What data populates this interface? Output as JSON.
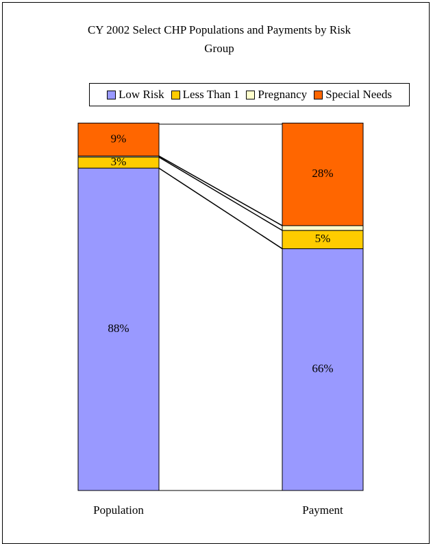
{
  "chart_data": {
    "type": "stacked_bar",
    "title": "CY 2002 Select CHP Populations and Payments by Risk Group",
    "categories": [
      "Population",
      "Payment"
    ],
    "series": [
      {
        "name": "Low Risk",
        "color": "#9999ff",
        "values": [
          88,
          66
        ],
        "value_labels": [
          "88%",
          "66%"
        ]
      },
      {
        "name": "Less Than 1",
        "color": "#ffcc00",
        "values": [
          3,
          5
        ],
        "value_labels": [
          "3%",
          "5%"
        ]
      },
      {
        "name": "Pregnancy",
        "color": "#ffffcc",
        "values": [
          0.3,
          1.3
        ],
        "value_labels": [
          null,
          null
        ]
      },
      {
        "name": "Special Needs",
        "color": "#ff6600",
        "values": [
          9,
          28
        ],
        "value_labels": [
          "9%",
          "28%"
        ]
      }
    ],
    "ylim": [
      0,
      100
    ],
    "legend": "top",
    "series_lines": true
  }
}
